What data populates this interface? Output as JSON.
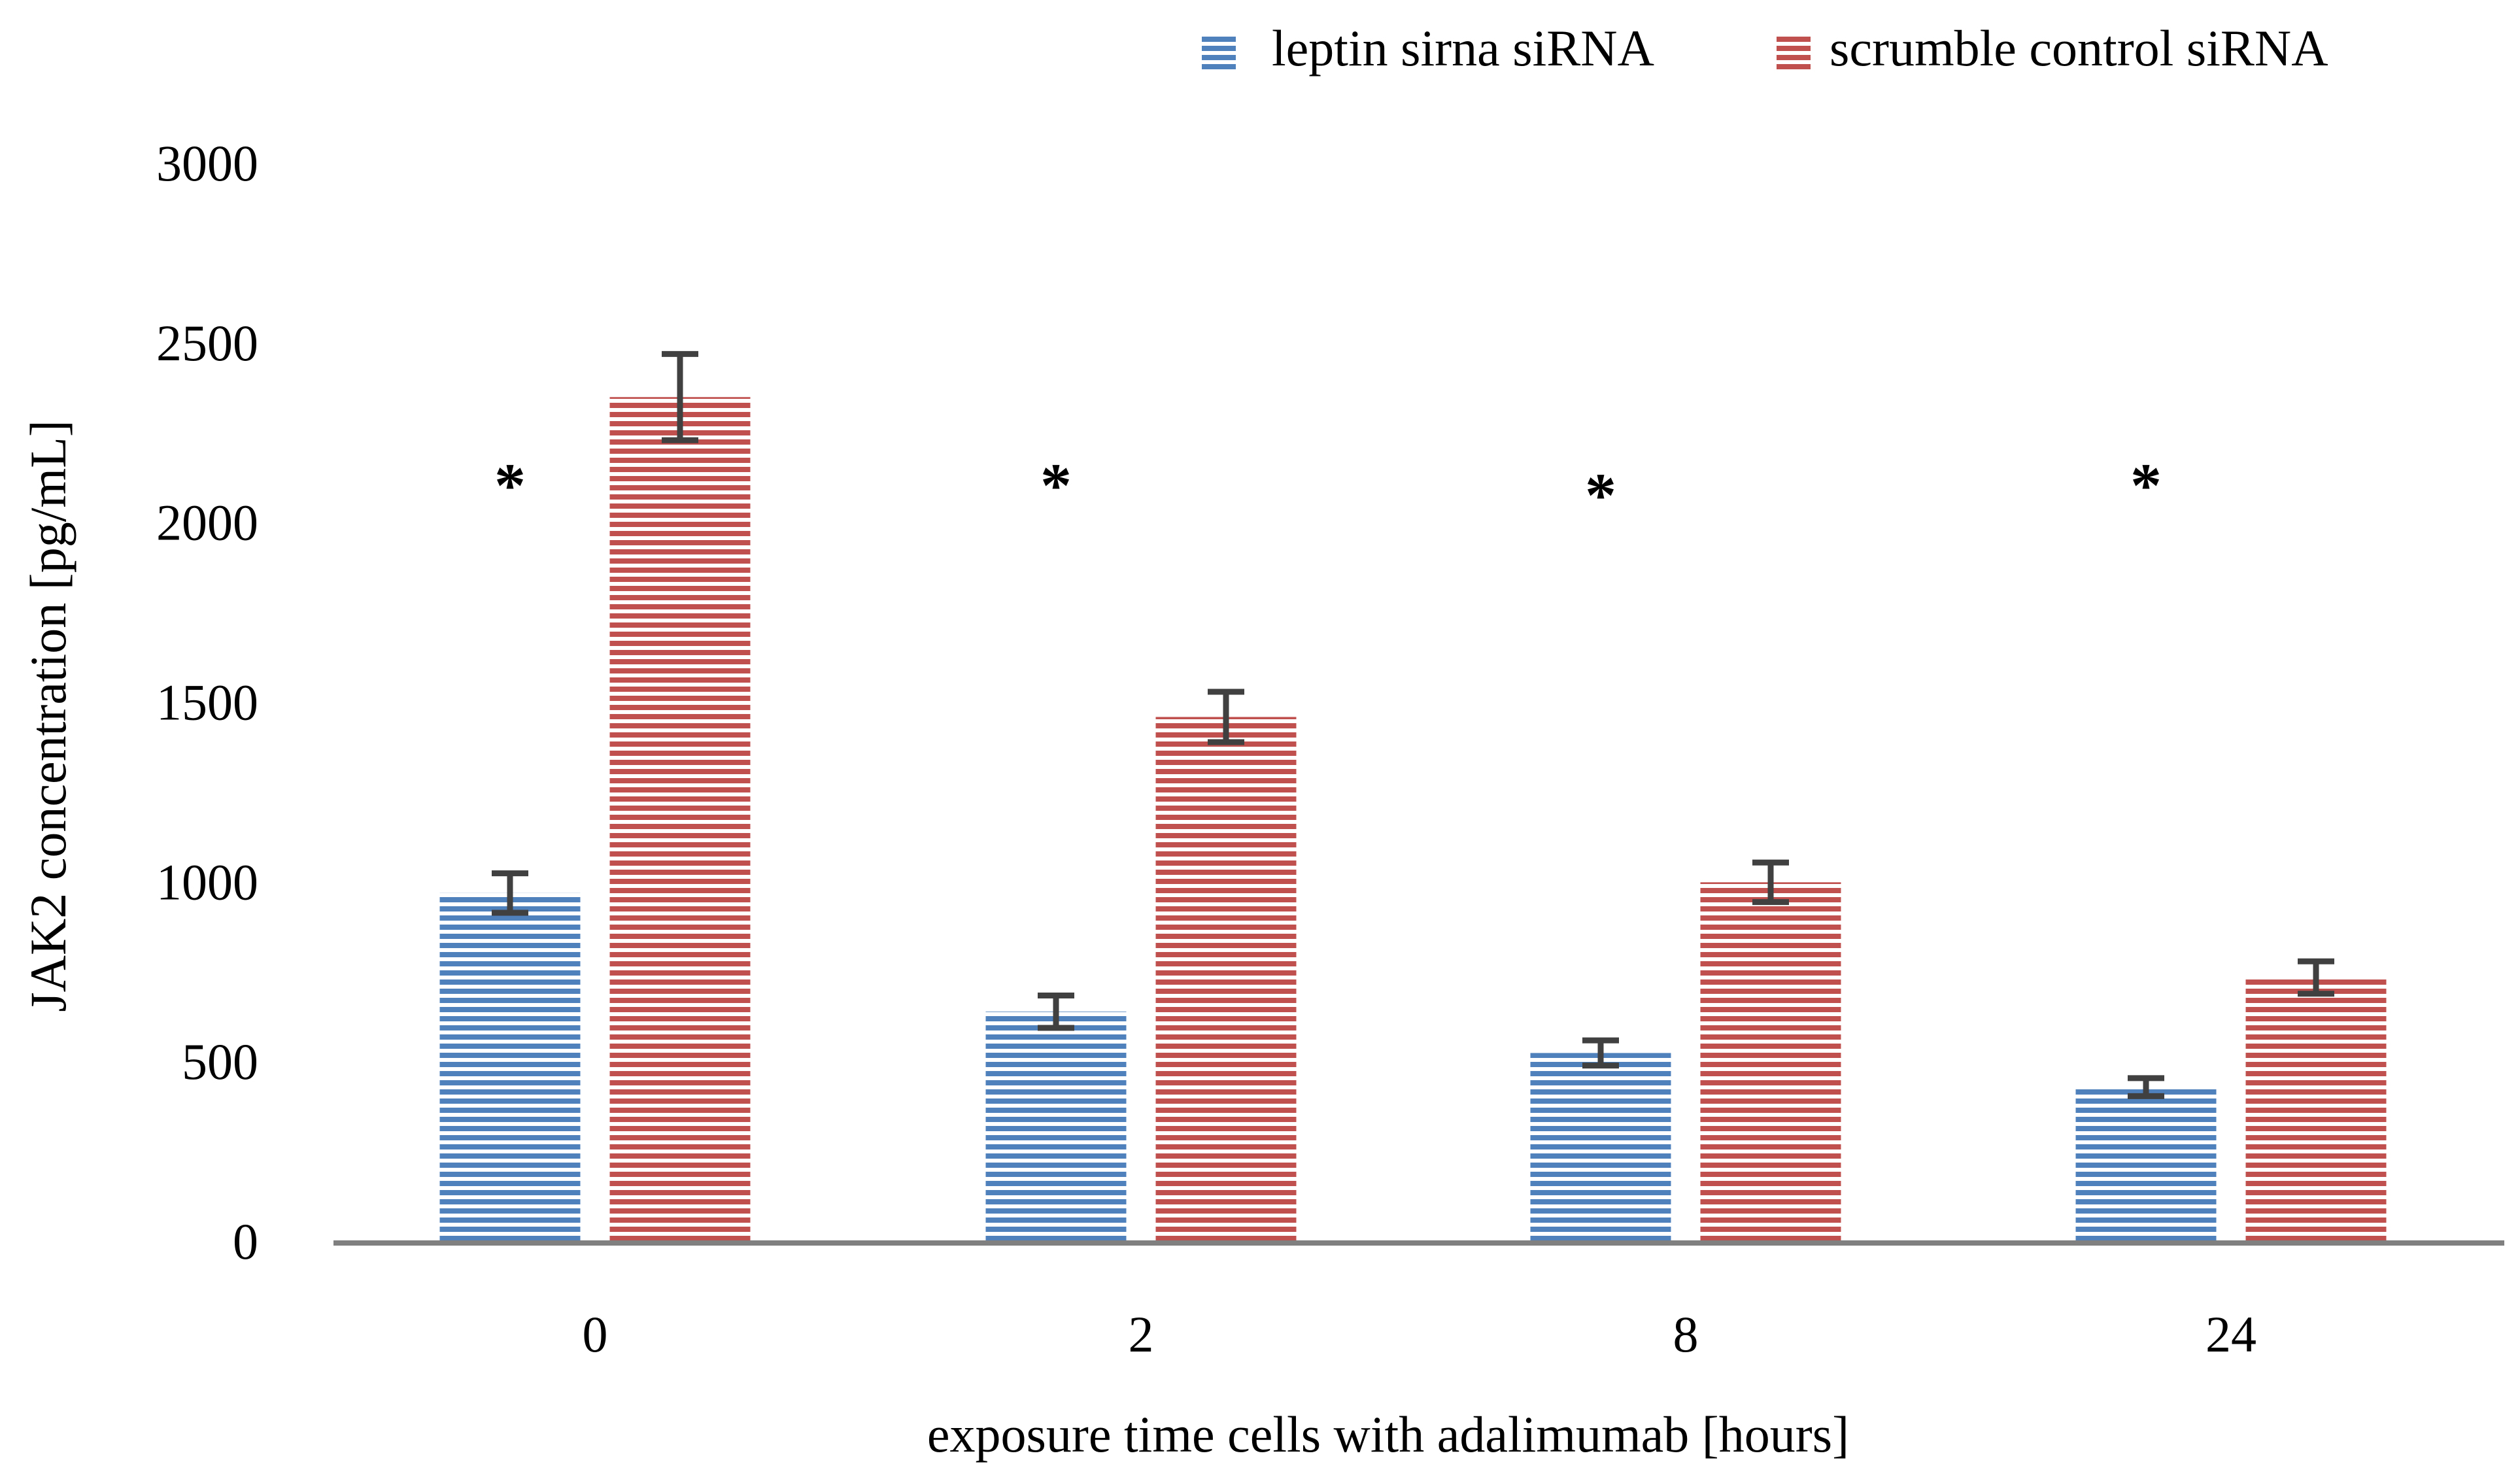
{
  "colors": {
    "series_leptin": "#4f81bd",
    "series_scrumble": "#c0504d",
    "axis": "#808080",
    "error_bar": "#404040"
  },
  "chart_data": {
    "type": "bar",
    "title": "",
    "xlabel": "exposure time cells with adalimumab [hours]",
    "ylabel": "JAK2 concentration [pg/mL]",
    "ylim": [
      0,
      3000
    ],
    "yticks": [
      0,
      500,
      1000,
      1500,
      2000,
      2500,
      3000
    ],
    "yticks_labels": [
      "0",
      "500",
      "1000",
      "1500",
      "2000",
      "2500",
      "3000"
    ],
    "categories": [
      "0",
      "2",
      "8",
      "24"
    ],
    "legend_position": "top-right",
    "series": [
      {
        "name": "leptin sirna siRNA",
        "color": "#4f81bd",
        "values": [
          970,
          640,
          525,
          430
        ],
        "errors": [
          55,
          45,
          35,
          25
        ]
      },
      {
        "name": "scrumble control siRNA",
        "color": "#c0504d",
        "values": [
          2350,
          1460,
          1000,
          735
        ],
        "errors": [
          120,
          70,
          55,
          45
        ]
      }
    ],
    "significance_markers": [
      "*",
      "*",
      "*",
      "*"
    ]
  }
}
